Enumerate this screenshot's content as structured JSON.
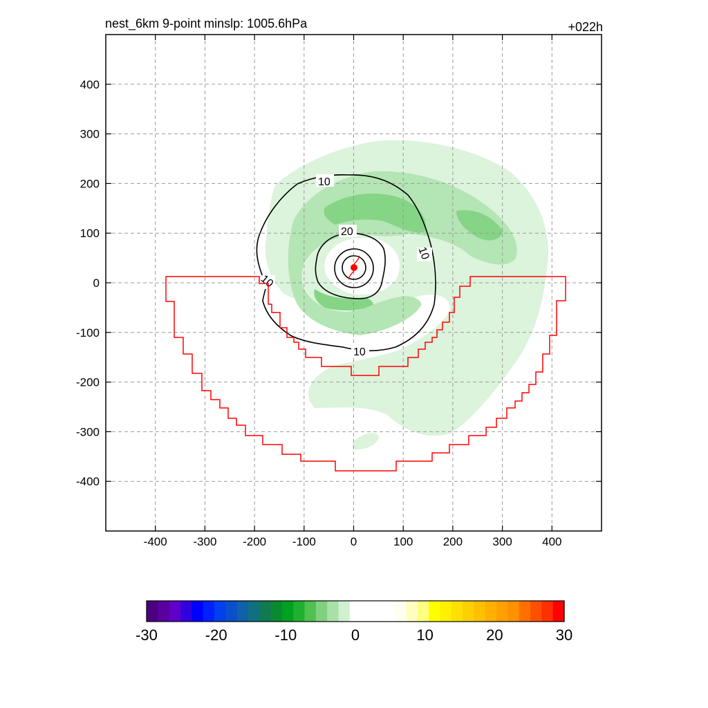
{
  "chart_data": {
    "type": "heatmap",
    "title_left": "nest_6km  9-point minslp: 1005.6hPa",
    "title_right": "+022h",
    "x_ticks": [
      "-400",
      "-300",
      "-200",
      "-100",
      "0",
      "100",
      "200",
      "300",
      "400"
    ],
    "y_ticks": [
      "400",
      "300",
      "200",
      "100",
      "0",
      "-100",
      "-200",
      "-300",
      "-400"
    ],
    "xlim": [
      -500,
      500
    ],
    "ylim": [
      -500,
      500
    ],
    "grid": true,
    "contour_labels": [
      "10",
      "20",
      "10",
      "10",
      "10"
    ],
    "storm_center": [
      0,
      30
    ],
    "colorbar": {
      "ticks": [
        "-30",
        "-20",
        "-10",
        "0",
        "10",
        "20",
        "30"
      ],
      "range": [
        -30,
        30
      ],
      "colors": [
        "#4b0082",
        "#5a00a0",
        "#6000c8",
        "#3300e0",
        "#0000ff",
        "#0020ff",
        "#0040ee",
        "#0a50cc",
        "#1060aa",
        "#107080",
        "#107a50",
        "#0a8a30",
        "#00a020",
        "#20b030",
        "#50c050",
        "#80d080",
        "#a8e0a8",
        "#d0f0d0",
        "#ffffff",
        "#ffffff",
        "#ffffff",
        "#ffffff",
        "#fffff0",
        "#ffffc0",
        "#ffff80",
        "#ffff00",
        "#fff000",
        "#ffe000",
        "#ffd000",
        "#ffc000",
        "#ffb000",
        "#ffa000",
        "#ff9000",
        "#ff7000",
        "#ff5000",
        "#ff3000",
        "#ff0000"
      ]
    },
    "colors": {
      "green_light": "#dcf3dc",
      "green_mid": "#b4e5b4",
      "green_dark": "#86d486",
      "contour": "#000000",
      "boundary": "#ff0000"
    }
  }
}
